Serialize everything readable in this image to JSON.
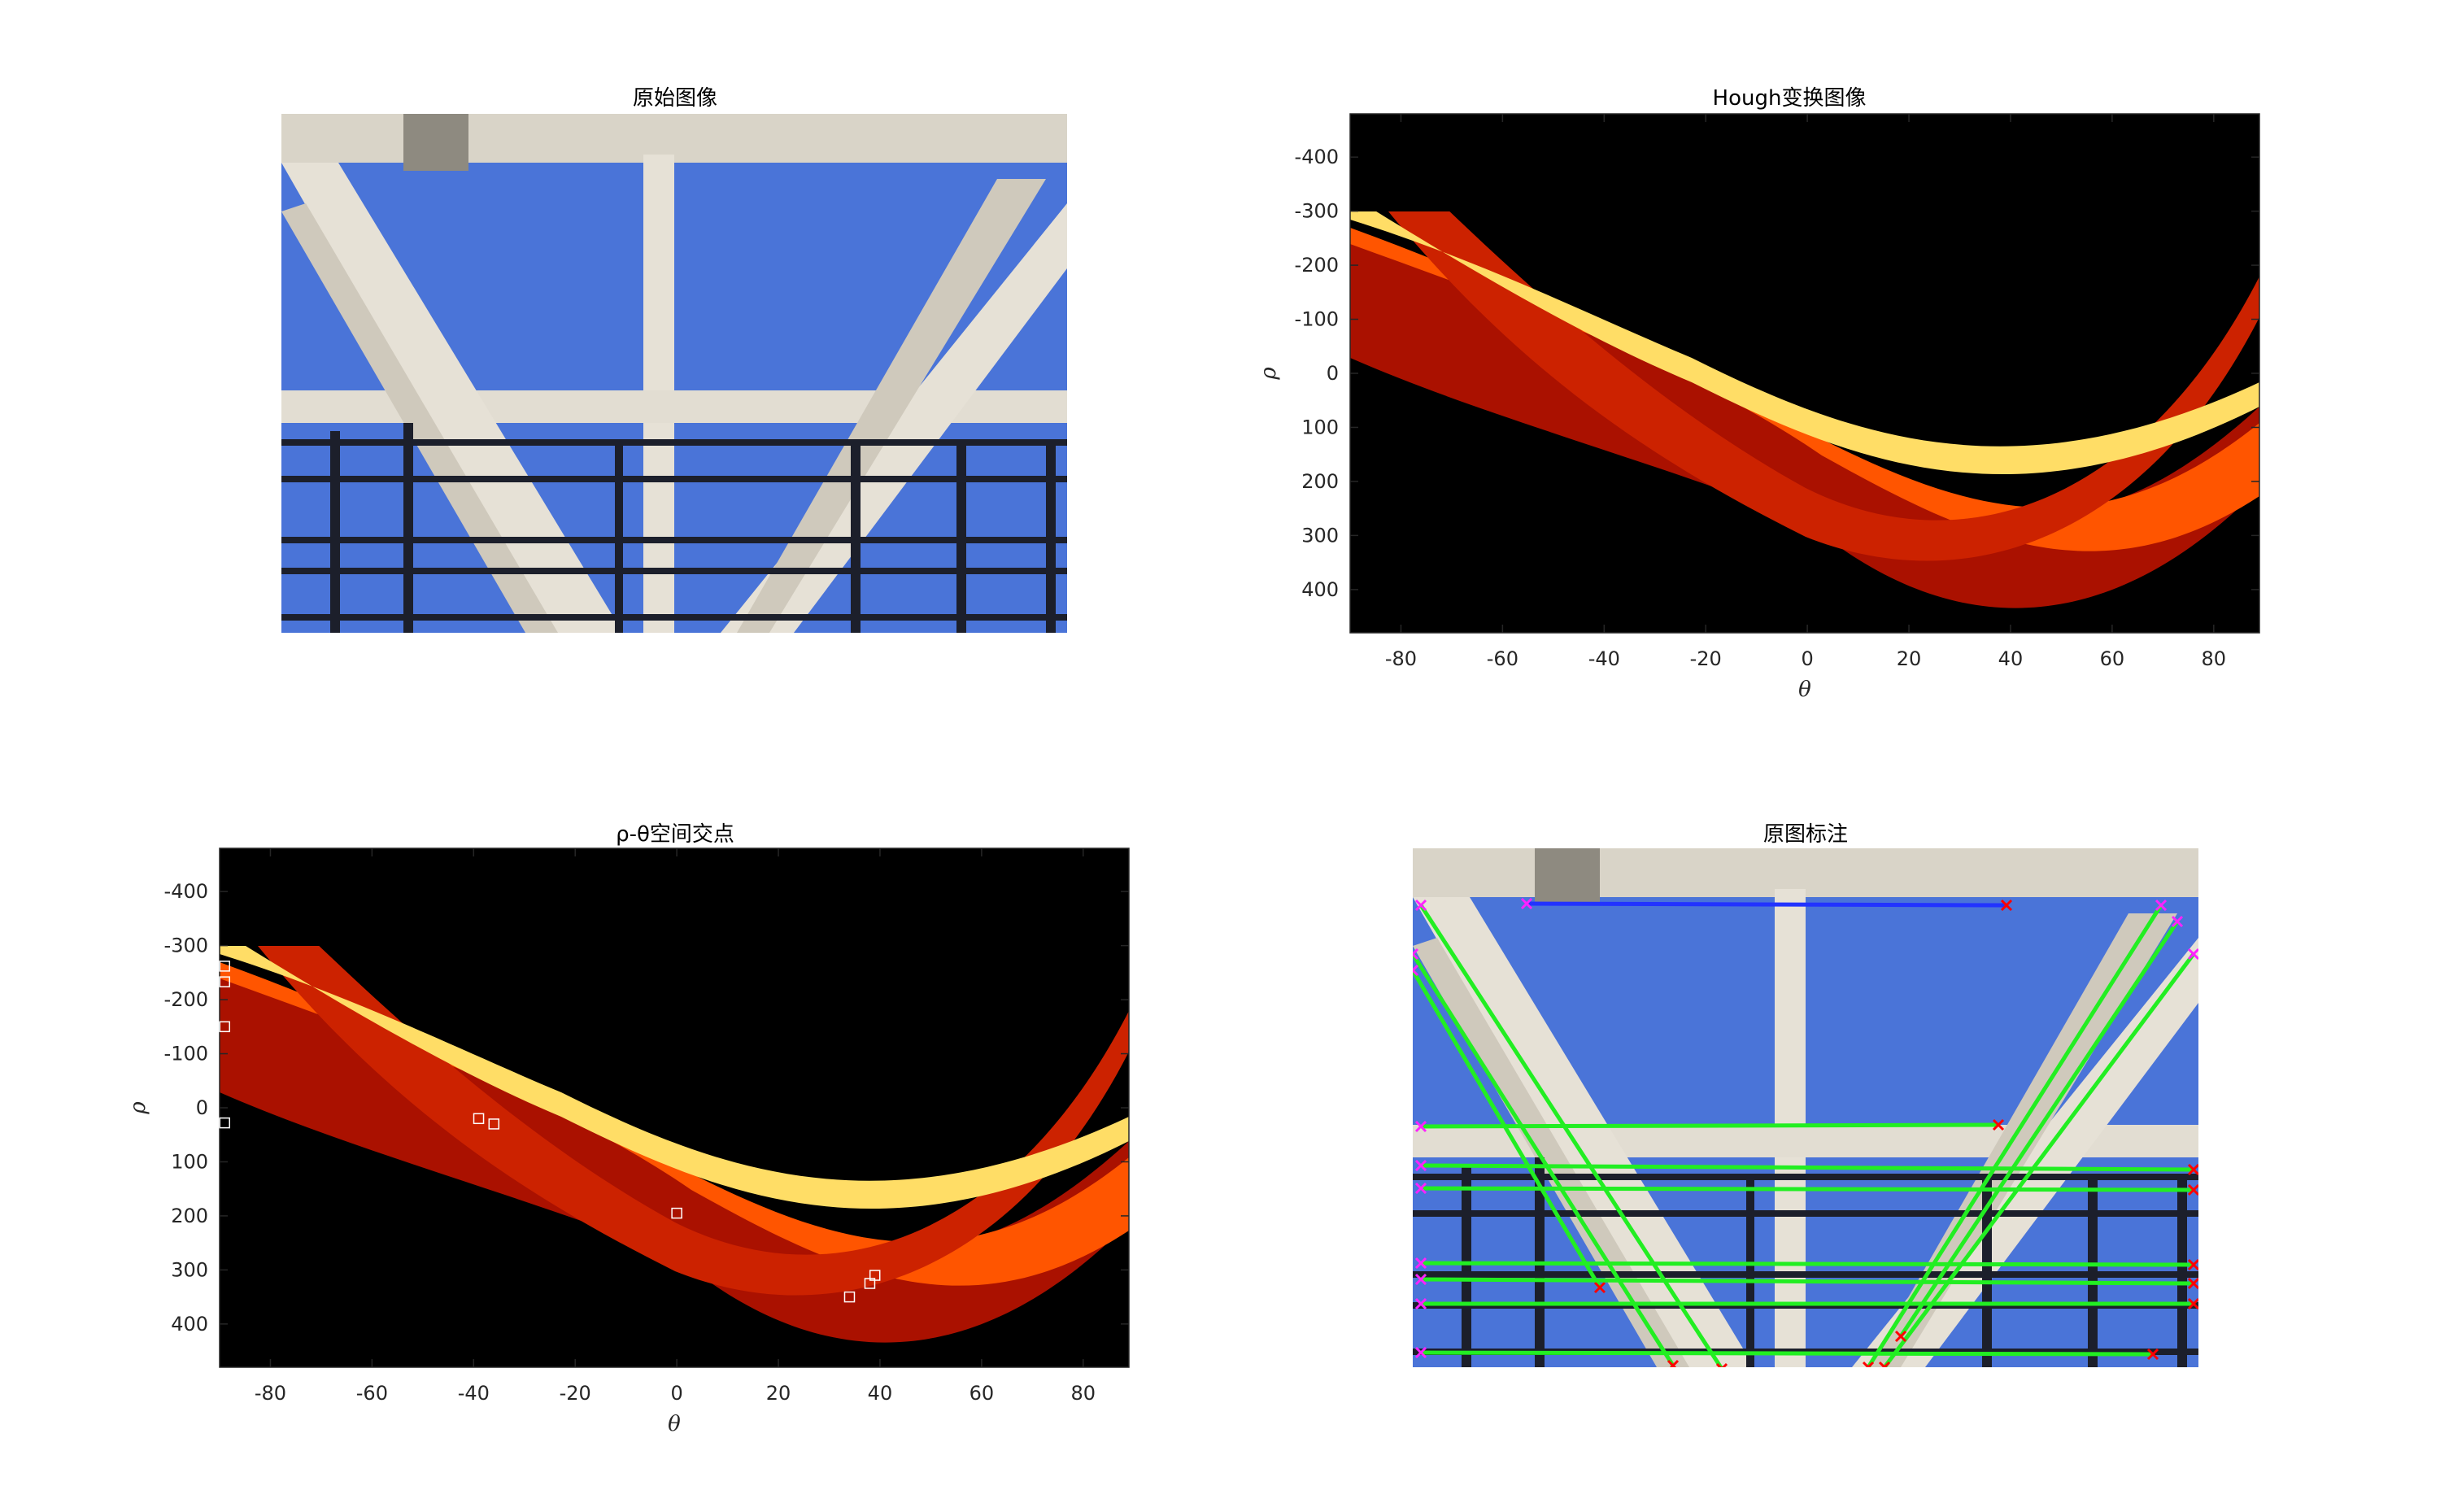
{
  "figure": {
    "panel1": {
      "title": "原始图像"
    },
    "panel2": {
      "title": "Hough变换图像"
    },
    "panel3": {
      "title": "ρ-θ空间交点"
    },
    "panel4": {
      "title": "原图标注"
    }
  },
  "colors": {
    "sky": "#4a74d8",
    "beam": "#e6e1d6",
    "rail": "#1c1f2b",
    "hough_bg": "#000000",
    "line_green": "#22ee22",
    "line_blue": "#2233ff",
    "marker_red": "#ff0000",
    "marker_magenta": "#ff22ff"
  },
  "chart_data": [
    {
      "type": "heatmap",
      "title": "Hough变换图像",
      "xlabel": "θ",
      "ylabel": "ρ",
      "xlim": [
        -90,
        89
      ],
      "ylim": [
        -480,
        480
      ],
      "y_reversed": true,
      "xticks": [
        -80,
        -60,
        -40,
        -20,
        0,
        20,
        40,
        60,
        80
      ],
      "yticks": [
        -400,
        -300,
        -200,
        -100,
        0,
        100,
        200,
        300,
        400
      ],
      "colormap": "hot"
    },
    {
      "type": "heatmap",
      "title": "ρ-θ空间交点",
      "xlabel": "θ",
      "ylabel": "ρ",
      "xlim": [
        -90,
        89
      ],
      "ylim": [
        -480,
        480
      ],
      "y_reversed": true,
      "xticks": [
        -80,
        -60,
        -40,
        -20,
        0,
        20,
        40,
        60,
        80
      ],
      "yticks": [
        -400,
        -300,
        -200,
        -100,
        0,
        100,
        200,
        300,
        400
      ],
      "colormap": "hot",
      "peaks": [
        {
          "theta": -89,
          "rho": -262
        },
        {
          "theta": -89,
          "rho": -233
        },
        {
          "theta": -89,
          "rho": -150
        },
        {
          "theta": -89,
          "rho": 28
        },
        {
          "theta": -39,
          "rho": 20
        },
        {
          "theta": -36,
          "rho": 30
        },
        {
          "theta": 0,
          "rho": 195
        },
        {
          "theta": 34,
          "rho": 350
        },
        {
          "theta": 38,
          "rho": 325
        },
        {
          "theta": 39,
          "rho": 310
        }
      ]
    }
  ]
}
